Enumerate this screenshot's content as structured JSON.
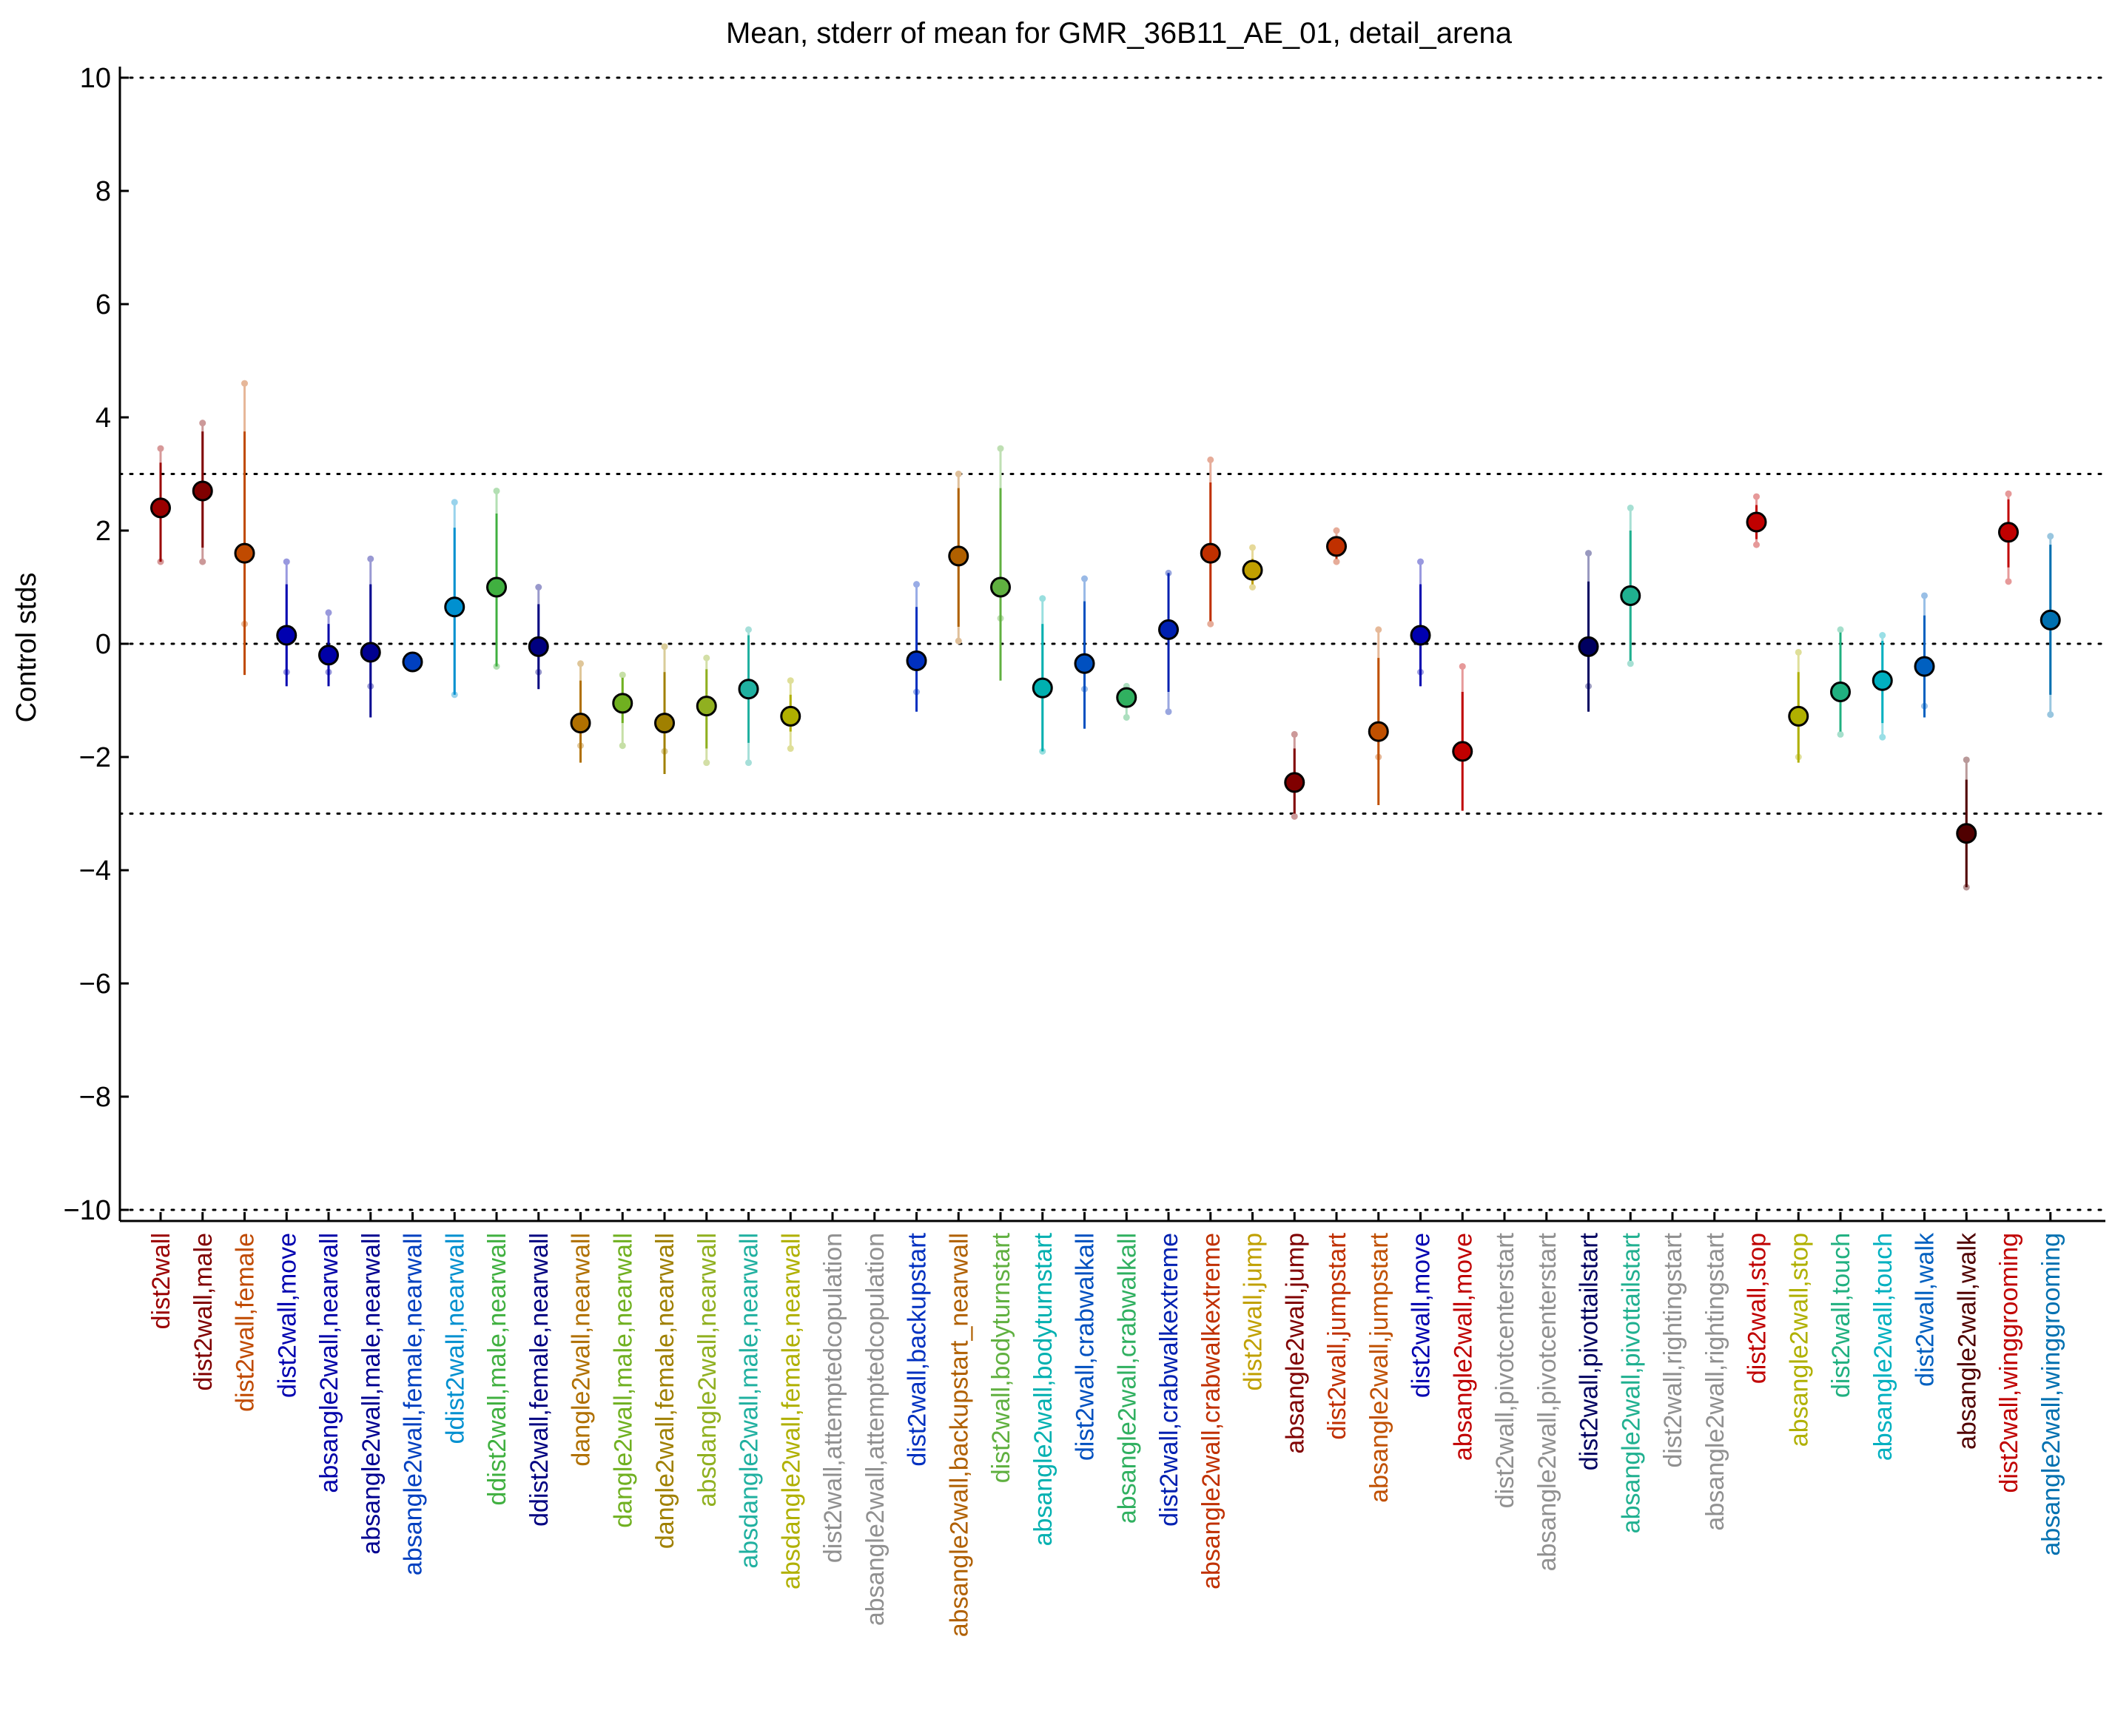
{
  "chart_data": {
    "type": "scatter",
    "title": "Mean, stderr of mean for GMR_36B11_AE_01, detail_arena",
    "ylabel": "Control stds",
    "xlabel": "",
    "ylim": [
      -10,
      10
    ],
    "yticks": [
      "10",
      "8",
      "6",
      "4",
      "2",
      "0",
      "−2",
      "−4",
      "−6",
      "−8",
      "−10"
    ],
    "ytick_values": [
      10,
      8,
      6,
      4,
      2,
      0,
      -2,
      -4,
      -6,
      -8,
      -10
    ],
    "reference_lines": [
      10,
      3,
      0,
      -3,
      -10
    ],
    "grid": false,
    "points": [
      {
        "label": "dist2wall",
        "color": "#9a0000",
        "mean": 2.4,
        "err_lo": 1.45,
        "err_hi": 3.2,
        "pt_lo": 1.45,
        "pt_hi": 3.45
      },
      {
        "label": "dist2wall,male",
        "color": "#800000",
        "mean": 2.7,
        "err_lo": 1.7,
        "err_hi": 3.75,
        "pt_lo": 1.45,
        "pt_hi": 3.9
      },
      {
        "label": "dist2wall,female",
        "color": "#c04a00",
        "mean": 1.6,
        "err_lo": -0.55,
        "err_hi": 3.75,
        "pt_lo": 0.35,
        "pt_hi": 4.6
      },
      {
        "label": "dist2wall,move",
        "color": "#0000b0",
        "mean": 0.15,
        "err_lo": -0.75,
        "err_hi": 1.05,
        "pt_lo": -0.5,
        "pt_hi": 1.45
      },
      {
        "label": "absangle2wall,nearwall",
        "color": "#0000a8",
        "mean": -0.2,
        "err_lo": -0.75,
        "err_hi": 0.35,
        "pt_lo": -0.5,
        "pt_hi": 0.55
      },
      {
        "label": "absangle2wall,male,nearwall",
        "color": "#000090",
        "mean": -0.15,
        "err_lo": -1.3,
        "err_hi": 1.05,
        "pt_lo": -0.75,
        "pt_hi": 1.5
      },
      {
        "label": "absangle2wall,female,nearwall",
        "color": "#0040c0",
        "mean": -0.32,
        "err_lo": -0.4,
        "err_hi": -0.25,
        "pt_lo": -0.4,
        "pt_hi": -0.25
      },
      {
        "label": "ddist2wall,nearwall",
        "color": "#0090d0",
        "mean": 0.65,
        "err_lo": -0.9,
        "err_hi": 2.05,
        "pt_lo": -0.9,
        "pt_hi": 2.5
      },
      {
        "label": "ddist2wall,male,nearwall",
        "color": "#40b040",
        "mean": 1.0,
        "err_lo": -0.4,
        "err_hi": 2.3,
        "pt_lo": -0.4,
        "pt_hi": 2.7
      },
      {
        "label": "ddist2wall,female,nearwall",
        "color": "#000080",
        "mean": -0.05,
        "err_lo": -0.8,
        "err_hi": 0.7,
        "pt_lo": -0.5,
        "pt_hi": 1.0
      },
      {
        "label": "dangle2wall,nearwall",
        "color": "#b07000",
        "mean": -1.4,
        "err_lo": -2.1,
        "err_hi": -0.65,
        "pt_lo": -1.8,
        "pt_hi": -0.35
      },
      {
        "label": "dangle2wall,male,nearwall",
        "color": "#70b020",
        "mean": -1.05,
        "err_lo": -1.4,
        "err_hi": -0.6,
        "pt_lo": -1.8,
        "pt_hi": -0.55
      },
      {
        "label": "dangle2wall,female,nearwall",
        "color": "#a08000",
        "mean": -1.4,
        "err_lo": -2.3,
        "err_hi": -0.5,
        "pt_lo": -1.9,
        "pt_hi": -0.05
      },
      {
        "label": "absdangle2wall,nearwall",
        "color": "#90b020",
        "mean": -1.1,
        "err_lo": -1.85,
        "err_hi": -0.45,
        "pt_lo": -2.1,
        "pt_hi": -0.25
      },
      {
        "label": "absdangle2wall,male,nearwall",
        "color": "#20b0a0",
        "mean": -0.8,
        "err_lo": -1.75,
        "err_hi": 0.15,
        "pt_lo": -2.1,
        "pt_hi": 0.25
      },
      {
        "label": "absdangle2wall,female,nearwall",
        "color": "#b0b000",
        "mean": -1.28,
        "err_lo": -1.55,
        "err_hi": -0.9,
        "pt_lo": -1.85,
        "pt_hi": -0.65
      },
      {
        "label": "dist2wall,attemptedcopulation",
        "color": "#909090",
        "mean": null
      },
      {
        "label": "absangle2wall,attemptedcopulation",
        "color": "#909090",
        "mean": null
      },
      {
        "label": "dist2wall,backupstart",
        "color": "#0030c0",
        "mean": -0.3,
        "err_lo": -1.2,
        "err_hi": 0.65,
        "pt_lo": -0.85,
        "pt_hi": 1.05
      },
      {
        "label": "absangle2wall,backupstart_nearwall",
        "color": "#b06000",
        "mean": 1.55,
        "err_lo": 0.3,
        "err_hi": 2.75,
        "pt_lo": 0.05,
        "pt_hi": 3.0
      },
      {
        "label": "dist2wall,bodyturnstart",
        "color": "#60b040",
        "mean": 1.0,
        "err_lo": -0.65,
        "err_hi": 2.75,
        "pt_lo": 0.45,
        "pt_hi": 3.45
      },
      {
        "label": "absangle2wall,bodyturnstart",
        "color": "#00b0b0",
        "mean": -0.78,
        "err_lo": -1.9,
        "err_hi": 0.35,
        "pt_lo": -1.9,
        "pt_hi": 0.8
      },
      {
        "label": "dist2wall,crabwalkall",
        "color": "#0050c0",
        "mean": -0.35,
        "err_lo": -1.5,
        "err_hi": 0.75,
        "pt_lo": -0.8,
        "pt_hi": 1.15
      },
      {
        "label": "absangle2wall,crabwalkall",
        "color": "#30b060",
        "mean": -0.95,
        "err_lo": -1.1,
        "err_hi": -0.8,
        "pt_lo": -1.3,
        "pt_hi": -0.75
      },
      {
        "label": "dist2wall,crabwalkextreme",
        "color": "#0020b0",
        "mean": 0.25,
        "err_lo": -0.85,
        "err_hi": 1.25,
        "pt_lo": -1.2,
        "pt_hi": 1.25
      },
      {
        "label": "absangle2wall,crabwalkextreme",
        "color": "#c03000",
        "mean": 1.6,
        "err_lo": 0.4,
        "err_hi": 2.85,
        "pt_lo": 0.35,
        "pt_hi": 3.25
      },
      {
        "label": "dist2wall,jump",
        "color": "#c0a000",
        "mean": 1.3,
        "err_lo": 1.05,
        "err_hi": 1.5,
        "pt_lo": 1.0,
        "pt_hi": 1.7
      },
      {
        "label": "absangle2wall,jump",
        "color": "#800000",
        "mean": -2.45,
        "err_lo": -3.0,
        "err_hi": -1.85,
        "pt_lo": -3.05,
        "pt_hi": -1.6
      },
      {
        "label": "dist2wall,jumpstart",
        "color": "#c03000",
        "mean": 1.72,
        "err_lo": 1.5,
        "err_hi": 1.9,
        "pt_lo": 1.45,
        "pt_hi": 2.0
      },
      {
        "label": "absangle2wall,jumpstart",
        "color": "#c05000",
        "mean": -1.55,
        "err_lo": -2.85,
        "err_hi": -0.25,
        "pt_lo": -2.0,
        "pt_hi": 0.25
      },
      {
        "label": "dist2wall,move",
        "color": "#0000b0",
        "mean": 0.15,
        "err_lo": -0.75,
        "err_hi": 1.05,
        "pt_lo": -0.5,
        "pt_hi": 1.45
      },
      {
        "label": "absangle2wall,move",
        "color": "#c00000",
        "mean": -1.9,
        "err_lo": -2.95,
        "err_hi": -0.85,
        "pt_lo": -2.0,
        "pt_hi": -0.4
      },
      {
        "label": "dist2wall,pivotcenterstart",
        "color": "#909090",
        "mean": null
      },
      {
        "label": "absangle2wall,pivotcenterstart",
        "color": "#909090",
        "mean": null
      },
      {
        "label": "dist2wall,pivottailstart",
        "color": "#000060",
        "mean": -0.05,
        "err_lo": -1.2,
        "err_hi": 1.1,
        "pt_lo": -0.75,
        "pt_hi": 1.6
      },
      {
        "label": "absangle2wall,pivottailstart",
        "color": "#20b090",
        "mean": 0.85,
        "err_lo": -0.3,
        "err_hi": 2.0,
        "pt_lo": -0.35,
        "pt_hi": 2.4
      },
      {
        "label": "dist2wall,rightingstart",
        "color": "#909090",
        "mean": null
      },
      {
        "label": "absangle2wall,rightingstart",
        "color": "#909090",
        "mean": null
      },
      {
        "label": "dist2wall,stop",
        "color": "#c00000",
        "mean": 2.15,
        "err_lo": 1.85,
        "err_hi": 2.45,
        "pt_lo": 1.75,
        "pt_hi": 2.6
      },
      {
        "label": "absangle2wall,stop",
        "color": "#b0b000",
        "mean": -1.28,
        "err_lo": -2.1,
        "err_hi": -0.5,
        "pt_lo": -2.0,
        "pt_hi": -0.15
      },
      {
        "label": "dist2wall,touch",
        "color": "#20b080",
        "mean": -0.85,
        "err_lo": -1.55,
        "err_hi": 0.2,
        "pt_lo": -1.6,
        "pt_hi": 0.25
      },
      {
        "label": "absangle2wall,touch",
        "color": "#00b0c0",
        "mean": -0.65,
        "err_lo": -1.4,
        "err_hi": 0.05,
        "pt_lo": -1.65,
        "pt_hi": 0.15
      },
      {
        "label": "dist2wall,walk",
        "color": "#0060c0",
        "mean": -0.4,
        "err_lo": -1.3,
        "err_hi": 0.5,
        "pt_lo": -1.1,
        "pt_hi": 0.85
      },
      {
        "label": "absangle2wall,walk",
        "color": "#500000",
        "mean": -3.35,
        "err_lo": -4.3,
        "err_hi": -2.4,
        "pt_lo": -4.3,
        "pt_hi": -2.05
      },
      {
        "label": "dist2wall,winggrooming",
        "color": "#c00000",
        "mean": 1.97,
        "err_lo": 1.35,
        "err_hi": 2.55,
        "pt_lo": 1.1,
        "pt_hi": 2.65
      },
      {
        "label": "absangle2wall,winggrooming",
        "color": "#0070b0",
        "mean": 0.42,
        "err_lo": -0.9,
        "err_hi": 1.75,
        "pt_lo": -1.25,
        "pt_hi": 1.9
      }
    ]
  }
}
